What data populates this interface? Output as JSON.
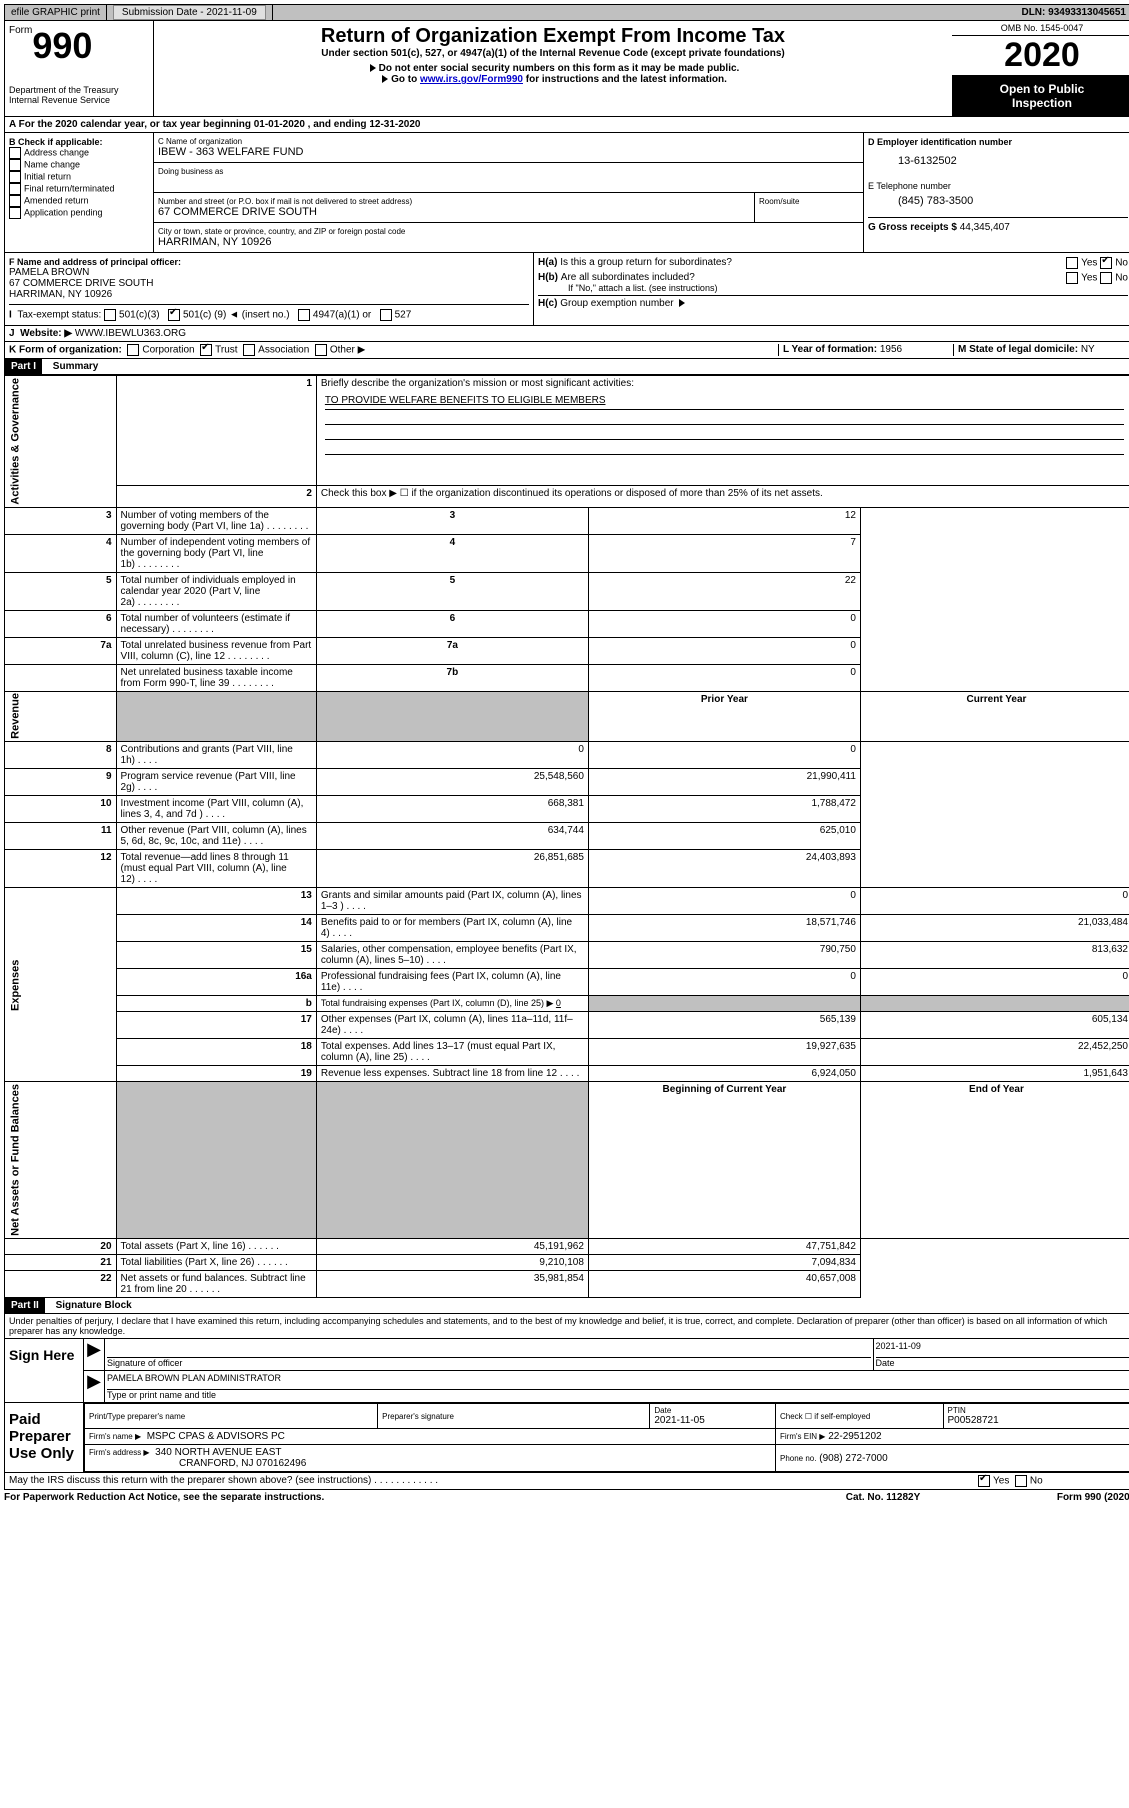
{
  "topbar": {
    "efile": "efile GRAPHIC print",
    "sub_label": "Submission Date - 2021-11-09",
    "dln": "DLN: 93493313045651"
  },
  "header": {
    "form_prefix": "Form",
    "form_no": "990",
    "dept1": "Department of the Treasury",
    "dept2": "Internal Revenue Service",
    "title": "Return of Organization Exempt From Income Tax",
    "under_section": "Under section 501(c), 527, or 4947(a)(1) of the Internal Revenue Code (except private foundations)",
    "no_ssn": "Do not enter social security numbers on this form as it may be made public.",
    "goto_pre": "Go to ",
    "goto_link": "www.irs.gov/Form990",
    "goto_post": " for instructions and the latest information.",
    "omb": "OMB No. 1545-0047",
    "year": "2020",
    "inspect1": "Open to Public",
    "inspect2": "Inspection"
  },
  "row_a": "A For the 2020 calendar year, or tax year beginning 01-01-2020   , and ending 12-31-2020",
  "b": {
    "label": "B Check if applicable:",
    "opts": [
      "Address change",
      "Name change",
      "Initial return",
      "Final return/terminated",
      "Amended return",
      "Application pending"
    ]
  },
  "c": {
    "name_label": "C Name of organization",
    "name": "IBEW - 363 WELFARE FUND",
    "dba_label": "Doing business as",
    "addr_label": "Number and street (or P.O. box if mail is not delivered to street address)",
    "room_label": "Room/suite",
    "addr": "67 COMMERCE DRIVE SOUTH",
    "city_label": "City or town, state or province, country, and ZIP or foreign postal code",
    "city": "HARRIMAN, NY  10926"
  },
  "d": {
    "ein_label": "D Employer identification number",
    "ein": "13-6132502",
    "phone_label": "E Telephone number",
    "phone": "(845) 783-3500",
    "gross_label": "G Gross receipts $",
    "gross": "44,345,407"
  },
  "f": {
    "label": "F  Name and address of principal officer:",
    "name": "PAMELA BROWN",
    "addr1": "67 COMMERCE DRIVE SOUTH",
    "addr2": "HARRIMAN, NY  10926"
  },
  "h": {
    "a_label": "Is this a group return for subordinates?",
    "a_prefix": "H(a)",
    "b_prefix": "H(b)",
    "b_label": "Are all subordinates included?",
    "note": "If \"No,\" attach a list. (see instructions)",
    "c_prefix": "H(c)",
    "c_label": "Group exemption number",
    "yes": "Yes",
    "no": "No"
  },
  "i": {
    "label": "Tax-exempt status:",
    "opt1": "501(c)(3)",
    "opt2_pre": "501(c) (",
    "opt2_val": "9",
    "opt2_post": ") ◄ (insert no.)",
    "opt3": "4947(a)(1) or",
    "opt4": "527"
  },
  "j": {
    "label": "Website: ▶",
    "val": "WWW.IBEWLU363.ORG"
  },
  "k": {
    "label": "K Form of organization:",
    "opts": [
      "Corporation",
      "Trust",
      "Association",
      "Other ▶"
    ],
    "l_label": "L Year of formation:",
    "l_val": "1956",
    "m_label": "M State of legal domicile:",
    "m_val": "NY"
  },
  "part1": {
    "header": "Part I",
    "title": "Summary",
    "sections": {
      "gov": "Activities & Governance",
      "rev": "Revenue",
      "exp": "Expenses",
      "net": "Net Assets or Fund Balances"
    },
    "q1": "Briefly describe the organization's mission or most significant activities:",
    "mission": "TO PROVIDE WELFARE BENEFITS TO ELIGIBLE MEMBERS",
    "q2": "Check this box ▶ ☐  if the organization discontinued its operations or disposed of more than 25% of its net assets.",
    "lines": [
      {
        "n": "3",
        "t": "Number of voting members of the governing body (Part VI, line 1a)",
        "b": "3",
        "v": "12"
      },
      {
        "n": "4",
        "t": "Number of independent voting members of the governing body (Part VI, line 1b)",
        "b": "4",
        "v": "7"
      },
      {
        "n": "5",
        "t": "Total number of individuals employed in calendar year 2020 (Part V, line 2a)",
        "b": "5",
        "v": "22"
      },
      {
        "n": "6",
        "t": "Total number of volunteers (estimate if necessary)",
        "b": "6",
        "v": "0"
      },
      {
        "n": "7a",
        "t": "Total unrelated business revenue from Part VIII, column (C), line 12",
        "b": "7a",
        "v": "0"
      },
      {
        "n": "",
        "t": "Net unrelated business taxable income from Form 990-T, line 39",
        "b": "7b",
        "v": "0"
      }
    ],
    "col_prior": "Prior Year",
    "col_current": "Current Year",
    "revenue": [
      {
        "n": "8",
        "t": "Contributions and grants (Part VIII, line 1h)",
        "p": "0",
        "c": "0"
      },
      {
        "n": "9",
        "t": "Program service revenue (Part VIII, line 2g)",
        "p": "25,548,560",
        "c": "21,990,411"
      },
      {
        "n": "10",
        "t": "Investment income (Part VIII, column (A), lines 3, 4, and 7d )",
        "p": "668,381",
        "c": "1,788,472"
      },
      {
        "n": "11",
        "t": "Other revenue (Part VIII, column (A), lines 5, 6d, 8c, 9c, 10c, and 11e)",
        "p": "634,744",
        "c": "625,010"
      },
      {
        "n": "12",
        "t": "Total revenue—add lines 8 through 11 (must equal Part VIII, column (A), line 12)",
        "p": "26,851,685",
        "c": "24,403,893"
      }
    ],
    "expenses": [
      {
        "n": "13",
        "t": "Grants and similar amounts paid (Part IX, column (A), lines 1–3 )",
        "p": "0",
        "c": "0"
      },
      {
        "n": "14",
        "t": "Benefits paid to or for members (Part IX, column (A), line 4)",
        "p": "18,571,746",
        "c": "21,033,484"
      },
      {
        "n": "15",
        "t": "Salaries, other compensation, employee benefits (Part IX, column (A), lines 5–10)",
        "p": "790,750",
        "c": "813,632"
      },
      {
        "n": "16a",
        "t": "Professional fundraising fees (Part IX, column (A), line 11e)",
        "p": "0",
        "c": "0"
      }
    ],
    "exp_b": {
      "n": "b",
      "t": "Total fundraising expenses (Part IX, column (D), line 25) ▶",
      "v": "0"
    },
    "expenses2": [
      {
        "n": "17",
        "t": "Other expenses (Part IX, column (A), lines 11a–11d, 11f–24e)",
        "p": "565,139",
        "c": "605,134"
      },
      {
        "n": "18",
        "t": "Total expenses. Add lines 13–17 (must equal Part IX, column (A), line 25)",
        "p": "19,927,635",
        "c": "22,452,250"
      },
      {
        "n": "19",
        "t": "Revenue less expenses. Subtract line 18 from line 12",
        "p": "6,924,050",
        "c": "1,951,643"
      }
    ],
    "col_begin": "Beginning of Current Year",
    "col_end": "End of Year",
    "net": [
      {
        "n": "20",
        "t": "Total assets (Part X, line 16)",
        "p": "45,191,962",
        "c": "47,751,842"
      },
      {
        "n": "21",
        "t": "Total liabilities (Part X, line 26)",
        "p": "9,210,108",
        "c": "7,094,834"
      },
      {
        "n": "22",
        "t": "Net assets or fund balances. Subtract line 21 from line 20",
        "p": "35,981,854",
        "c": "40,657,008"
      }
    ]
  },
  "part2": {
    "header": "Part II",
    "title": "Signature Block",
    "perjury": "Under penalties of perjury, I declare that I have examined this return, including accompanying schedules and statements, and to the best of my knowledge and belief, it is true, correct, and complete. Declaration of preparer (other than officer) is based on all information of which preparer has any knowledge."
  },
  "sign": {
    "here": "Sign Here",
    "sig_label": "Signature of officer",
    "date_label": "Date",
    "date": "2021-11-09",
    "name": "PAMELA BROWN  PLAN ADMINISTRATOR",
    "name_label": "Type or print name and title"
  },
  "prep": {
    "label": "Paid Preparer Use Only",
    "name_label": "Print/Type preparer's name",
    "sig_label": "Preparer's signature",
    "date_label": "Date",
    "date": "2021-11-05",
    "check_label": "Check ☐ if self-employed",
    "ptin_label": "PTIN",
    "ptin": "P00528721",
    "firm_label": "Firm's name    ▶",
    "firm": "MSPC CPAS & ADVISORS PC",
    "ein_label": "Firm's EIN ▶",
    "ein": "22-2951202",
    "addr_label": "Firm's address ▶",
    "addr1": "340 NORTH AVENUE EAST",
    "addr2": "CRANFORD, NJ  070162496",
    "phone_label": "Phone no.",
    "phone": "(908) 272-7000"
  },
  "discuss": {
    "q": "May the IRS discuss this return with the preparer shown above? (see instructions)",
    "yes": "Yes",
    "no": "No"
  },
  "footer": {
    "left": "For Paperwork Reduction Act Notice, see the separate instructions.",
    "mid": "Cat. No. 11282Y",
    "right": "Form 990 (2020)"
  }
}
